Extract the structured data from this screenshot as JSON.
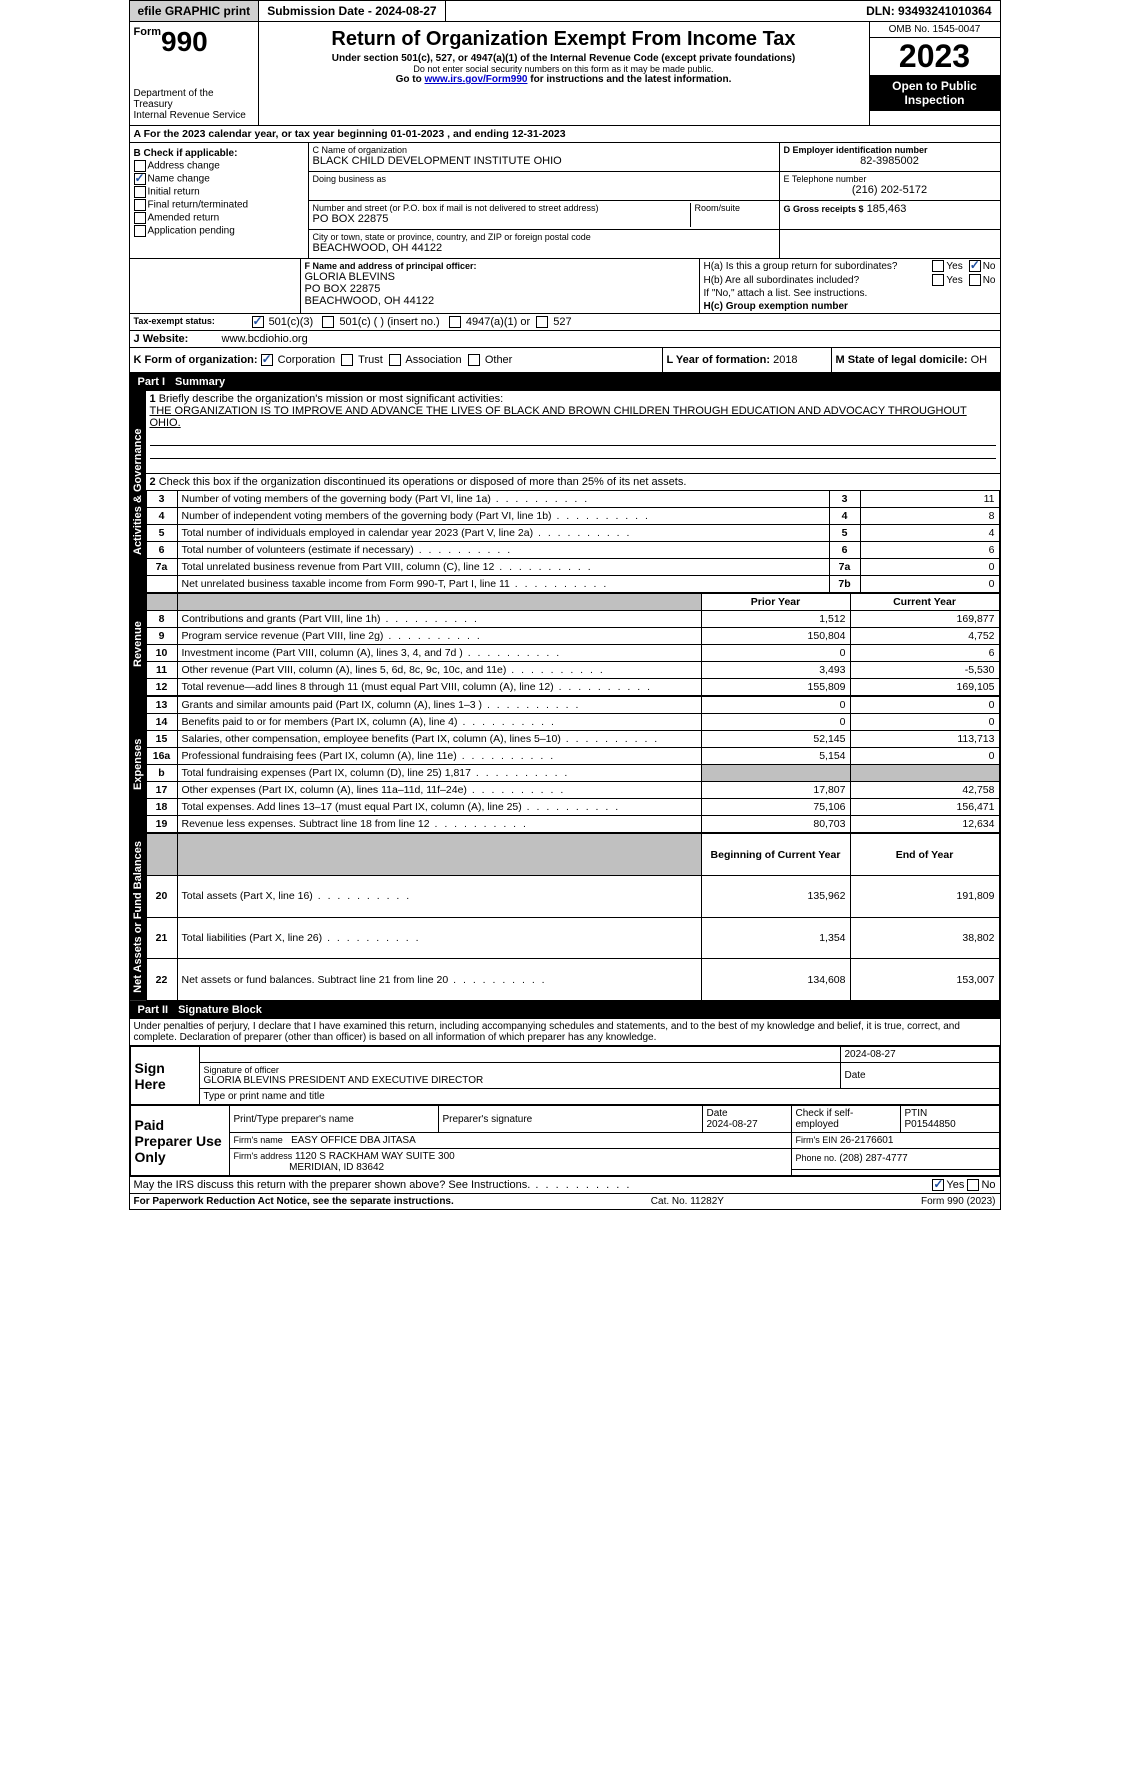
{
  "topbar": {
    "efile": "efile GRAPHIC print",
    "submission": "Submission Date - 2024-08-27",
    "dln": "DLN: 93493241010364"
  },
  "header": {
    "form_word": "Form",
    "form_num": "990",
    "dept": "Department of the Treasury\nInternal Revenue Service",
    "title": "Return of Organization Exempt From Income Tax",
    "sub1": "Under section 501(c), 527, or 4947(a)(1) of the Internal Revenue Code (except private foundations)",
    "sub2": "Do not enter social security numbers on this form as it may be made public.",
    "sub3_pre": "Go to ",
    "sub3_link": "www.irs.gov/Form990",
    "sub3_post": " for instructions and the latest information.",
    "omb": "OMB No. 1545-0047",
    "year": "2023",
    "open": "Open to Public Inspection"
  },
  "lineA": {
    "text_pre": "For the 2023 calendar year, or tax year beginning ",
    "begin": "01-01-2023",
    "mid": " , and ending ",
    "end": "12-31-2023"
  },
  "sectionB": {
    "title": "B Check if applicable:",
    "address_change": "Address change",
    "name_change": "Name change",
    "initial_return": "Initial return",
    "final_return": "Final return/terminated",
    "amended_return": "Amended return",
    "application_pending": "Application pending"
  },
  "sectionC": {
    "name_label": "C Name of organization",
    "name": "BLACK CHILD DEVELOPMENT INSTITUTE OHIO",
    "dba_label": "Doing business as",
    "dba": "",
    "addr_label": "Number and street (or P.O. box if mail is not delivered to street address)",
    "room_label": "Room/suite",
    "addr": "PO BOX 22875",
    "city_label": "City or town, state or province, country, and ZIP or foreign postal code",
    "city": "BEACHWOOD, OH  44122"
  },
  "sectionD": {
    "ein_label": "D Employer identification number",
    "ein": "82-3985002",
    "tel_label": "E Telephone number",
    "tel": "(216) 202-5172",
    "gross_label": "G Gross receipts $",
    "gross": "185,463"
  },
  "sectionF": {
    "label": "F  Name and address of principal officer:",
    "name": "GLORIA BLEVINS",
    "addr1": "PO BOX 22875",
    "addr2": "BEACHWOOD, OH  44122"
  },
  "sectionH": {
    "a_label": "H(a)  Is this a group return for subordinates?",
    "b_label": "H(b)  Are all subordinates included?",
    "b_note": "If \"No,\" attach a list. See instructions.",
    "c_label": "H(c)  Group exemption number",
    "yes": "Yes",
    "no": "No"
  },
  "sectionI": {
    "label": "Tax-exempt status:",
    "c3": "501(c)(3)",
    "c_other": "501(c) (  ) (insert no.)",
    "a1": "4947(a)(1) or",
    "s527": "527"
  },
  "sectionJ": {
    "label": "Website:",
    "value": "www.bcdiohio.org"
  },
  "sectionK": {
    "label": "K Form of organization:",
    "corp": "Corporation",
    "trust": "Trust",
    "assoc": "Association",
    "other": "Other"
  },
  "sectionL": {
    "label": "L Year of formation:",
    "value": "2018"
  },
  "sectionM": {
    "label": "M State of legal domicile:",
    "value": "OH"
  },
  "part1": {
    "header": "Part I",
    "title": "Summary",
    "line1_label": "Briefly describe the organization's mission or most significant activities:",
    "line1_text": "THE ORGANIZATION IS TO IMPROVE AND ADVANCE THE LIVES OF BLACK AND BROWN CHILDREN THROUGH EDUCATION AND ADVOCACY THROUGHOUT OHIO.",
    "line2": "Check this box      if the organization discontinued its operations or disposed of more than 25% of its net assets.",
    "tabs": {
      "gov": "Activities & Governance",
      "rev": "Revenue",
      "exp": "Expenses",
      "net": "Net Assets or Fund Balances"
    },
    "col_prior": "Prior Year",
    "col_current": "Current Year",
    "col_begin": "Beginning of Current Year",
    "col_end": "End of Year",
    "rows_gov": [
      {
        "n": "3",
        "d": "Number of voting members of the governing body (Part VI, line 1a)",
        "rn": "3",
        "v": "11"
      },
      {
        "n": "4",
        "d": "Number of independent voting members of the governing body (Part VI, line 1b)",
        "rn": "4",
        "v": "8"
      },
      {
        "n": "5",
        "d": "Total number of individuals employed in calendar year 2023 (Part V, line 2a)",
        "rn": "5",
        "v": "4"
      },
      {
        "n": "6",
        "d": "Total number of volunteers (estimate if necessary)",
        "rn": "6",
        "v": "6"
      },
      {
        "n": "7a",
        "d": "Total unrelated business revenue from Part VIII, column (C), line 12",
        "rn": "7a",
        "v": "0"
      },
      {
        "n": "",
        "d": "Net unrelated business taxable income from Form 990-T, Part I, line 11",
        "rn": "7b",
        "v": "0"
      }
    ],
    "rows_rev": [
      {
        "n": "8",
        "d": "Contributions and grants (Part VIII, line 1h)",
        "p": "1,512",
        "c": "169,877"
      },
      {
        "n": "9",
        "d": "Program service revenue (Part VIII, line 2g)",
        "p": "150,804",
        "c": "4,752"
      },
      {
        "n": "10",
        "d": "Investment income (Part VIII, column (A), lines 3, 4, and 7d )",
        "p": "0",
        "c": "6"
      },
      {
        "n": "11",
        "d": "Other revenue (Part VIII, column (A), lines 5, 6d, 8c, 9c, 10c, and 11e)",
        "p": "3,493",
        "c": "-5,530"
      },
      {
        "n": "12",
        "d": "Total revenue—add lines 8 through 11 (must equal Part VIII, column (A), line 12)",
        "p": "155,809",
        "c": "169,105"
      }
    ],
    "rows_exp": [
      {
        "n": "13",
        "d": "Grants and similar amounts paid (Part IX, column (A), lines 1–3 )",
        "p": "0",
        "c": "0"
      },
      {
        "n": "14",
        "d": "Benefits paid to or for members (Part IX, column (A), line 4)",
        "p": "0",
        "c": "0"
      },
      {
        "n": "15",
        "d": "Salaries, other compensation, employee benefits (Part IX, column (A), lines 5–10)",
        "p": "52,145",
        "c": "113,713"
      },
      {
        "n": "16a",
        "d": "Professional fundraising fees (Part IX, column (A), line 11e)",
        "p": "5,154",
        "c": "0"
      },
      {
        "n": "b",
        "d": "Total fundraising expenses (Part IX, column (D), line 25) 1,817",
        "p": "",
        "c": "",
        "grey": true
      },
      {
        "n": "17",
        "d": "Other expenses (Part IX, column (A), lines 11a–11d, 11f–24e)",
        "p": "17,807",
        "c": "42,758"
      },
      {
        "n": "18",
        "d": "Total expenses. Add lines 13–17 (must equal Part IX, column (A), line 25)",
        "p": "75,106",
        "c": "156,471"
      },
      {
        "n": "19",
        "d": "Revenue less expenses. Subtract line 18 from line 12",
        "p": "80,703",
        "c": "12,634"
      }
    ],
    "rows_net": [
      {
        "n": "20",
        "d": "Total assets (Part X, line 16)",
        "p": "135,962",
        "c": "191,809"
      },
      {
        "n": "21",
        "d": "Total liabilities (Part X, line 26)",
        "p": "1,354",
        "c": "38,802"
      },
      {
        "n": "22",
        "d": "Net assets or fund balances. Subtract line 21 from line 20",
        "p": "134,608",
        "c": "153,007"
      }
    ]
  },
  "part2": {
    "header": "Part II",
    "title": "Signature Block",
    "declaration": "Under penalties of perjury, I declare that I have examined this return, including accompanying schedules and statements, and to the best of my knowledge and belief, it is true, correct, and complete. Declaration of preparer (other than officer) is based on all information of which preparer has any knowledge.",
    "sign_here": "Sign Here",
    "sig_officer_label": "Signature of officer",
    "officer_name": "GLORIA BLEVINS PRESIDENT AND EXECUTIVE DIRECTOR",
    "type_name_label": "Type or print name and title",
    "date_label": "Date",
    "date_val": "2024-08-27",
    "paid": "Paid Preparer Use Only",
    "prep_name_label": "Print/Type preparer's name",
    "prep_sig_label": "Preparer's signature",
    "prep_date_label": "Date",
    "prep_date": "2024-08-27",
    "check_self": "Check       if self-employed",
    "ptin_label": "PTIN",
    "ptin": "P01544850",
    "firm_name_label": "Firm's name",
    "firm_name": "EASY OFFICE DBA JITASA",
    "firm_ein_label": "Firm's EIN",
    "firm_ein": "26-2176601",
    "firm_addr_label": "Firm's address",
    "firm_addr1": "1120 S RACKHAM WAY SUITE 300",
    "firm_addr2": "MERIDIAN, ID  83642",
    "phone_label": "Phone no.",
    "phone": "(208) 287-4777",
    "discuss": "May the IRS discuss this return with the preparer shown above? See Instructions."
  },
  "footer": {
    "left": "For Paperwork Reduction Act Notice, see the separate instructions.",
    "mid": "Cat. No. 11282Y",
    "right": "Form 990 (2023)"
  }
}
